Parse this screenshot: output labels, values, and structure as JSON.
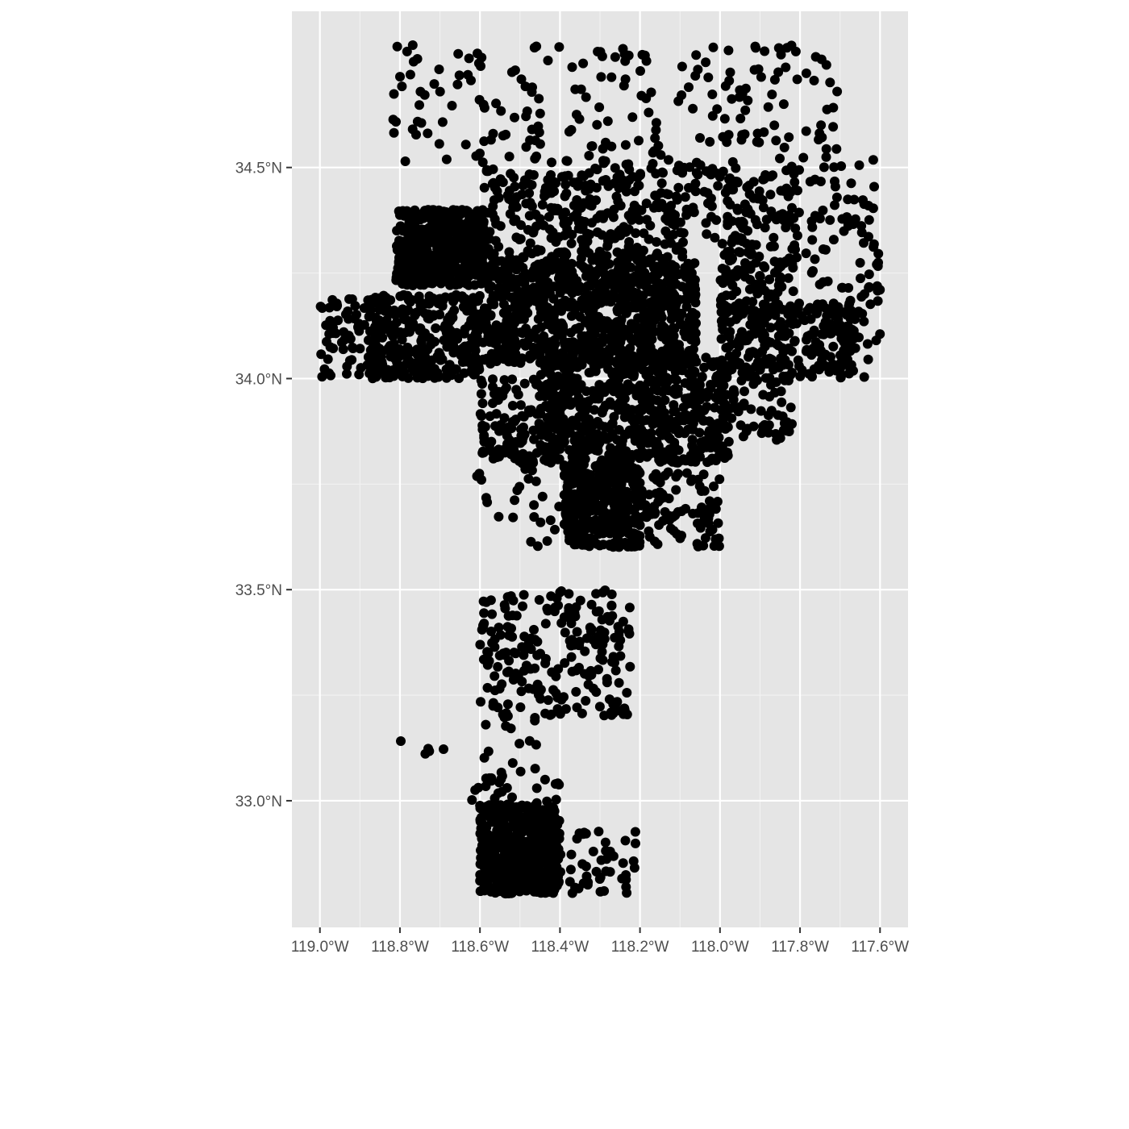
{
  "chart_data": {
    "type": "scatter",
    "title": "",
    "xlabel": "",
    "ylabel": "",
    "xlim": [
      -119.07,
      -117.53
    ],
    "ylim": [
      32.7,
      34.87
    ],
    "grid": true,
    "panel_background": "#e5e5e5",
    "point_color": "#000000",
    "x_ticks": [
      {
        "value": -119.0,
        "label": "119.0°W"
      },
      {
        "value": -118.8,
        "label": "118.8°W"
      },
      {
        "value": -118.6,
        "label": "118.6°W"
      },
      {
        "value": -118.4,
        "label": "118.4°W"
      },
      {
        "value": -118.2,
        "label": "118.2°W"
      },
      {
        "value": -118.0,
        "label": "118.0°W"
      },
      {
        "value": -117.8,
        "label": "117.8°W"
      },
      {
        "value": -117.6,
        "label": "117.6°W"
      }
    ],
    "y_ticks": [
      {
        "value": 33.0,
        "label": "33.0°N"
      },
      {
        "value": 33.5,
        "label": "33.5°N"
      },
      {
        "value": 34.0,
        "label": "34.0°N"
      },
      {
        "value": 34.5,
        "label": "34.5°N"
      }
    ],
    "regions": [
      {
        "lon": [
          -118.81,
          -118.59
        ],
        "lat": [
          34.22,
          34.4
        ],
        "count": 500
      },
      {
        "lon": [
          -118.6,
          -118.06
        ],
        "lat": [
          34.03,
          34.3
        ],
        "count": 900
      },
      {
        "lon": [
          -118.45,
          -117.98
        ],
        "lat": [
          33.8,
          34.05
        ],
        "count": 600
      },
      {
        "lon": [
          -118.39,
          -118.2
        ],
        "lat": [
          33.6,
          33.8
        ],
        "count": 400
      },
      {
        "lon": [
          -118.88,
          -118.6
        ],
        "lat": [
          34.0,
          34.2
        ],
        "count": 300
      },
      {
        "lon": [
          -118.0,
          -117.66
        ],
        "lat": [
          34.0,
          34.18
        ],
        "count": 250
      },
      {
        "lon": [
          -118.0,
          -117.8
        ],
        "lat": [
          34.15,
          34.5
        ],
        "count": 200
      },
      {
        "lon": [
          -118.6,
          -118.0
        ],
        "lat": [
          34.3,
          34.5
        ],
        "count": 300
      },
      {
        "lon": [
          -118.82,
          -117.7
        ],
        "lat": [
          34.5,
          34.79
        ],
        "count": 220
      },
      {
        "lon": [
          -117.86,
          -117.6
        ],
        "lat": [
          34.2,
          34.55
        ],
        "count": 70
      },
      {
        "lon": [
          -119.0,
          -118.82
        ],
        "lat": [
          34.0,
          34.19
        ],
        "count": 90
      },
      {
        "lon": [
          -117.7,
          -117.6
        ],
        "lat": [
          34.0,
          34.22
        ],
        "count": 30
      },
      {
        "lon": [
          -118.6,
          -118.38
        ],
        "lat": [
          33.8,
          34.0
        ],
        "count": 150
      },
      {
        "lon": [
          -118.2,
          -118.0
        ],
        "lat": [
          33.6,
          33.78
        ],
        "count": 90
      },
      {
        "lon": [
          -118.0,
          -117.82
        ],
        "lat": [
          33.85,
          34.0
        ],
        "count": 60
      },
      {
        "lon": [
          -118.62,
          -118.4
        ],
        "lat": [
          33.6,
          33.8
        ],
        "count": 25
      },
      {
        "lon": [
          -118.6,
          -118.22
        ],
        "lat": [
          33.2,
          33.5
        ],
        "count": 220
      },
      {
        "lon": [
          -118.6,
          -118.45
        ],
        "lat": [
          33.05,
          33.2
        ],
        "count": 20
      },
      {
        "lon": [
          -118.8,
          -118.68
        ],
        "lat": [
          33.07,
          33.15
        ],
        "count": 5
      },
      {
        "lon": [
          -118.6,
          -118.4
        ],
        "lat": [
          32.78,
          32.99
        ],
        "count": 600
      },
      {
        "lon": [
          -118.4,
          -118.2
        ],
        "lat": [
          32.78,
          32.93
        ],
        "count": 45
      },
      {
        "lon": [
          -118.62,
          -118.4
        ],
        "lat": [
          32.98,
          33.05
        ],
        "count": 25
      }
    ]
  }
}
